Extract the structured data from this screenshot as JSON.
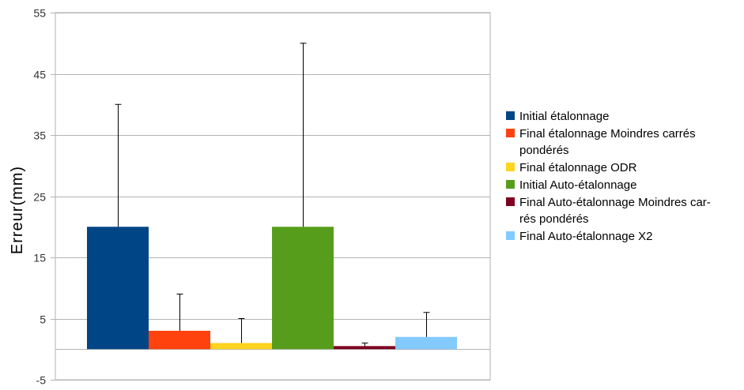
{
  "chart_data": {
    "type": "bar",
    "xlabel": "",
    "ylabel": "Erreur(mm)",
    "ylim": [
      -5,
      55
    ],
    "yticks": [
      "55",
      "45",
      "35",
      "25",
      "15",
      "5",
      "-5"
    ],
    "grid": true,
    "legend_position": "right",
    "series": [
      {
        "name": "Initial étalonnage",
        "legend_lines": [
          "Initial étalonnage"
        ],
        "value": 20,
        "error": 20,
        "color": "#004586"
      },
      {
        "name": "Final étalonnage Moindres carrés pondérés",
        "legend_lines": [
          "Final étalonnage Moindres carrés",
          "pondérés"
        ],
        "value": 3,
        "error": 6,
        "color": "#ff420e"
      },
      {
        "name": "Final étalonnage ODR",
        "legend_lines": [
          "Final étalonnage ODR"
        ],
        "value": 1,
        "error": 4,
        "color": "#ffd320"
      },
      {
        "name": "Initial Auto-étalonnage",
        "legend_lines": [
          "Initial Auto-étalonnage"
        ],
        "value": 20,
        "error": 30,
        "color": "#579d1c"
      },
      {
        "name": "Final Auto-étalonnage Moindres carrés pondérés",
        "legend_lines": [
          "Final Auto-étalonnage Moindres car-",
          "rés pondérés"
        ],
        "value": 0.5,
        "error": 0.5,
        "color": "#7e0021"
      },
      {
        "name": "Final Auto-étalonnage X2",
        "legend_lines": [
          "Final Auto-étalonnage X2"
        ],
        "value": 2,
        "error": 4,
        "color": "#83caff"
      }
    ]
  }
}
